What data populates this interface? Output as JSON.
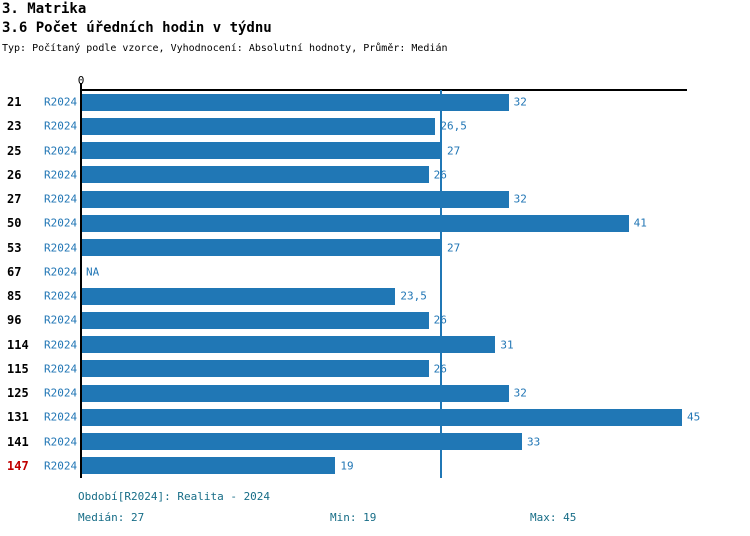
{
  "header": {
    "title1": "3. Matrika",
    "title2": "3.6 Počet úředních hodin v týdnu",
    "subtitle": "Typ: Počítaný podle vzorce, Vyhodnocení: Absolutní hodnoty, Průměr: Medián"
  },
  "axis": {
    "zero_tick_label": "0"
  },
  "footer": {
    "period_line": "Období[R2024]: Realita - 2024",
    "median_label": "Medián: 27",
    "min_label": "Min: 19",
    "max_label": "Max: 45"
  },
  "colors": {
    "bar": "#2077b5",
    "median_line": "#2077b5",
    "value_label": "#2176b5",
    "period_label": "#2176b5",
    "row_id": "#000000",
    "row_id_highlight": "#c00000",
    "footer_text": "#176d87",
    "axis": "#000000",
    "background": "#ffffff"
  },
  "chart_data": {
    "type": "bar",
    "orientation": "horizontal",
    "title": "3.6 Počet úředních hodin v týdnu",
    "series_label": "R2024",
    "categories": [
      "21",
      "23",
      "25",
      "26",
      "27",
      "50",
      "53",
      "67",
      "85",
      "96",
      "114",
      "115",
      "125",
      "131",
      "141",
      "147"
    ],
    "values": [
      32,
      26.5,
      27,
      26,
      32,
      41,
      27,
      null,
      23.5,
      26,
      31,
      26,
      32,
      45,
      33,
      19
    ],
    "value_labels": [
      "32",
      "26,5",
      "27",
      "26",
      "32",
      "41",
      "27",
      "NA",
      "23,5",
      "26",
      "31",
      "26",
      "32",
      "45",
      "33",
      "19"
    ],
    "xlim": [
      0,
      45
    ],
    "x_tick_labels": [
      "0"
    ],
    "grid": false,
    "median_reference_line": 27,
    "median": 27,
    "min": 19,
    "max": 45,
    "highlighted_category": "147",
    "rows": [
      {
        "id": "21",
        "period": "R2024",
        "value": 32,
        "value_label": "32",
        "highlight": false
      },
      {
        "id": "23",
        "period": "R2024",
        "value": 26.5,
        "value_label": "26,5",
        "highlight": false
      },
      {
        "id": "25",
        "period": "R2024",
        "value": 27,
        "value_label": "27",
        "highlight": false
      },
      {
        "id": "26",
        "period": "R2024",
        "value": 26,
        "value_label": "26",
        "highlight": false
      },
      {
        "id": "27",
        "period": "R2024",
        "value": 32,
        "value_label": "32",
        "highlight": false
      },
      {
        "id": "50",
        "period": "R2024",
        "value": 41,
        "value_label": "41",
        "highlight": false
      },
      {
        "id": "53",
        "period": "R2024",
        "value": 27,
        "value_label": "27",
        "highlight": false
      },
      {
        "id": "67",
        "period": "R2024",
        "value": null,
        "value_label": "NA",
        "highlight": false
      },
      {
        "id": "85",
        "period": "R2024",
        "value": 23.5,
        "value_label": "23,5",
        "highlight": false
      },
      {
        "id": "96",
        "period": "R2024",
        "value": 26,
        "value_label": "26",
        "highlight": false
      },
      {
        "id": "114",
        "period": "R2024",
        "value": 31,
        "value_label": "31",
        "highlight": false
      },
      {
        "id": "115",
        "period": "R2024",
        "value": 26,
        "value_label": "26",
        "highlight": false
      },
      {
        "id": "125",
        "period": "R2024",
        "value": 32,
        "value_label": "32",
        "highlight": false
      },
      {
        "id": "131",
        "period": "R2024",
        "value": 45,
        "value_label": "45",
        "highlight": false
      },
      {
        "id": "141",
        "period": "R2024",
        "value": 33,
        "value_label": "33",
        "highlight": false
      },
      {
        "id": "147",
        "period": "R2024",
        "value": 19,
        "value_label": "19",
        "highlight": true
      }
    ]
  }
}
